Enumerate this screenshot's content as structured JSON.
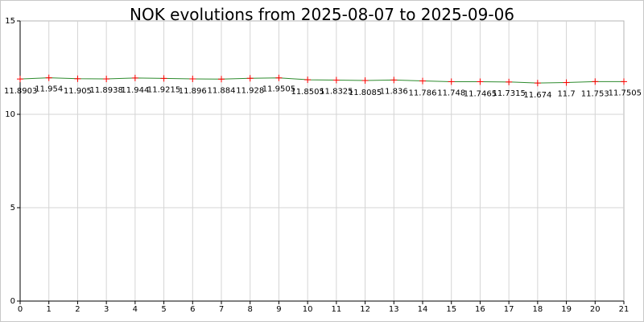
{
  "chart_data": {
    "type": "line",
    "title": "NOK evolutions from 2025-08-07 to 2025-09-06",
    "xlabel": "",
    "ylabel": "",
    "xlim": [
      0,
      21
    ],
    "ylim": [
      0,
      15
    ],
    "x_ticks": [
      0,
      1,
      2,
      3,
      4,
      5,
      6,
      7,
      8,
      9,
      10,
      11,
      12,
      13,
      14,
      15,
      16,
      17,
      18,
      19,
      20,
      21
    ],
    "y_ticks": [
      0,
      5,
      10,
      15
    ],
    "grid": true,
    "series": [
      {
        "x": [
          0,
          1,
          2,
          3,
          4,
          5,
          6,
          7,
          8,
          9,
          10,
          11,
          12,
          13,
          14,
          15,
          16,
          17,
          18,
          19,
          20,
          21
        ],
        "values": [
          11.8903,
          11.954,
          11.905,
          11.8938,
          11.944,
          11.9215,
          11.896,
          11.884,
          11.928,
          11.9505,
          11.8505,
          11.8325,
          11.8085,
          11.836,
          11.786,
          11.748,
          11.7465,
          11.7315,
          11.674,
          11.7,
          11.753,
          11.7505
        ],
        "labels": [
          "11.8903",
          "11.954",
          "11.905",
          "11.8938",
          "11.944",
          "11.9215",
          "11.896",
          "11.884",
          "11.928",
          "11.9505",
          "11.8505",
          "11.8325",
          "11.8085",
          "11.836",
          "11.786",
          "11.748",
          "11.7465",
          "11.7315",
          "11.674",
          "11.7",
          "11.753",
          "11.7505"
        ],
        "line_color": "#2e8b2e",
        "marker_color": "#ff0000"
      }
    ]
  }
}
